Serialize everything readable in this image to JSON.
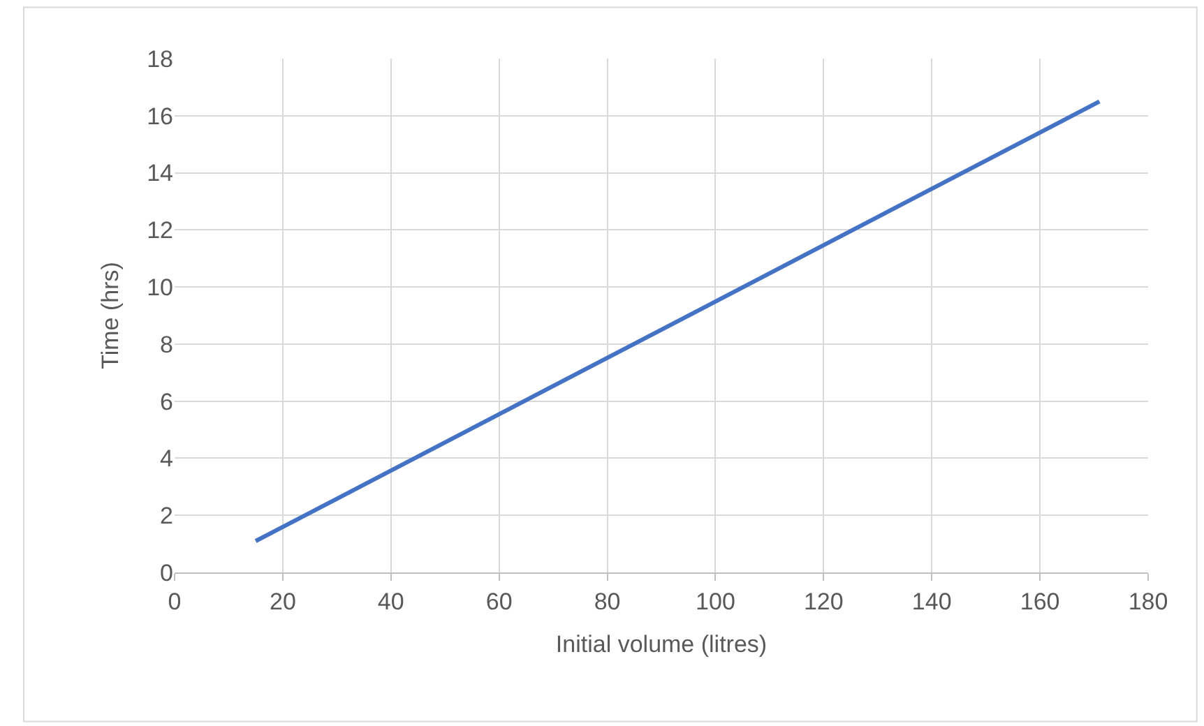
{
  "chart_data": {
    "type": "line",
    "xlabel": "Initial volume (litres)",
    "ylabel": "Time (hrs)",
    "x": [
      15,
      171
    ],
    "series": [
      {
        "color": "#4472c4",
        "values": [
          1.1,
          16.5
        ]
      }
    ],
    "xlim": [
      0,
      180
    ],
    "xticks": [
      0,
      20,
      40,
      60,
      80,
      100,
      120,
      140,
      160,
      180
    ],
    "ylim": [
      0,
      18
    ],
    "yticks": [
      0,
      2,
      4,
      6,
      8,
      10,
      12,
      14,
      16,
      18
    ],
    "grid": true,
    "marker": "none",
    "line_style": "solid"
  }
}
